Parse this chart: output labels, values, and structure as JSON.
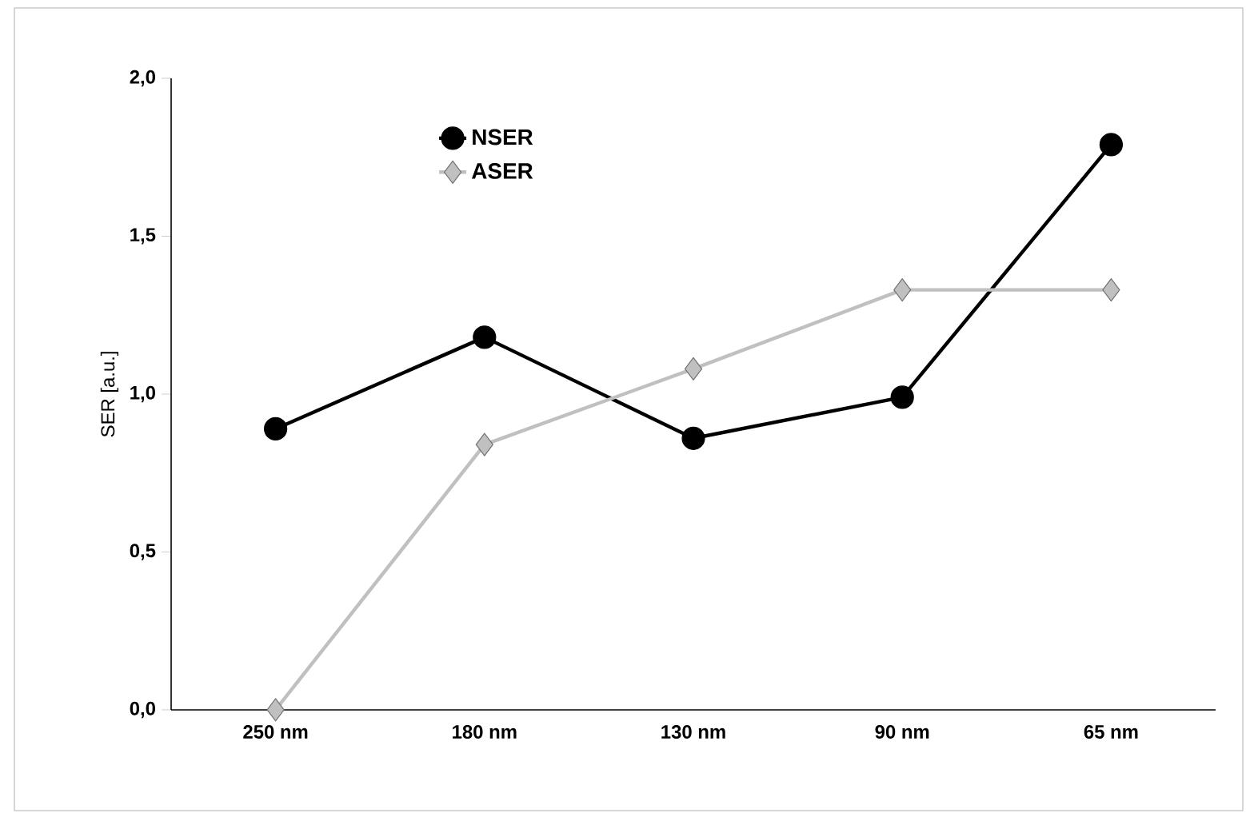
{
  "chart_data": {
    "type": "line",
    "ylabel": "SER [a.u.]",
    "categories": [
      "250 nm",
      "180 nm",
      "130 nm",
      "90 nm",
      "65 nm"
    ],
    "series": [
      {
        "name": "NSER",
        "color": "#000000",
        "marker": "circle",
        "values": [
          0.89,
          1.18,
          0.86,
          0.99,
          1.79
        ]
      },
      {
        "name": "ASER",
        "color": "#c0c0c0",
        "marker": "diamond",
        "values": [
          0.0,
          0.84,
          1.08,
          1.33,
          1.33
        ]
      }
    ],
    "ylim": [
      0,
      2
    ],
    "yticks": [
      {
        "value": 0,
        "label": "0,0"
      },
      {
        "value": 0.5,
        "label": "0,5"
      },
      {
        "value": 1,
        "label": "1,0"
      },
      {
        "value": 1.5,
        "label": "1,5"
      },
      {
        "value": 2,
        "label": "2,0"
      }
    ],
    "grid": false,
    "legend": "top left",
    "line_style": "solid"
  }
}
